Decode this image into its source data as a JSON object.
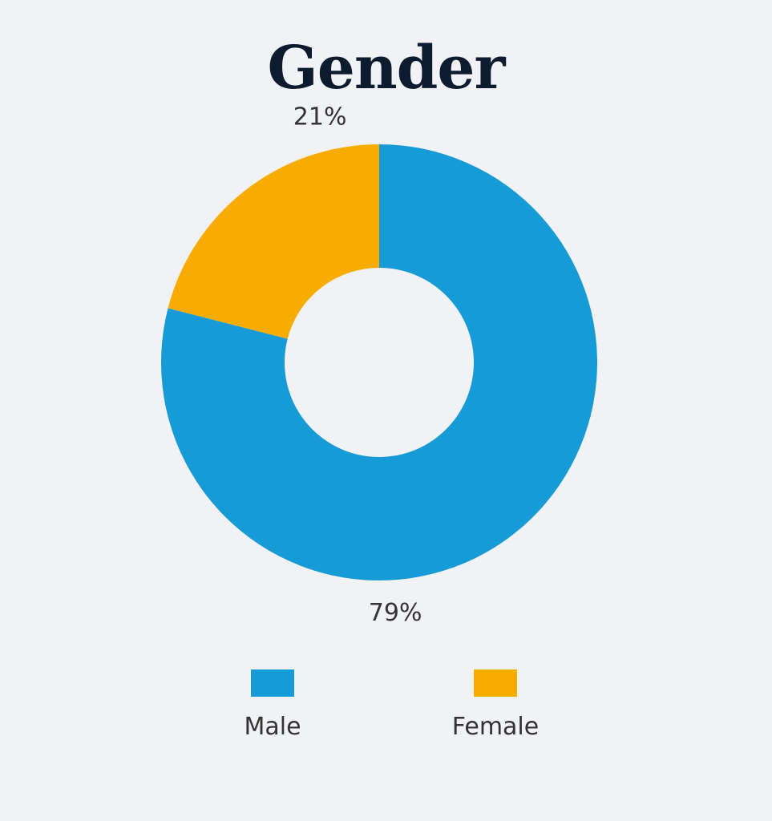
{
  "chart_data": {
    "type": "pie",
    "variant": "donut",
    "title": "Gender",
    "categories": [
      "Male",
      "Female"
    ],
    "values": [
      79,
      21
    ],
    "data_labels": [
      "79%",
      "21%"
    ],
    "colors": [
      "#169bd7",
      "#f8ac02"
    ],
    "legend_position": "bottom"
  }
}
